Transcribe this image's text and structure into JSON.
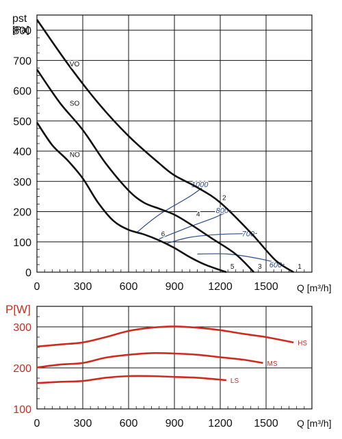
{
  "colors": {
    "black": "#111111",
    "blue": "#2a4a8c",
    "red": "#d02a1e"
  },
  "chart_data": [
    {
      "type": "line",
      "ylabel": "pst",
      "ylabel_unit": "[Pa]",
      "xlabel": "Q [m³/h]",
      "xlim": [
        0,
        1800
      ],
      "ylim": [
        0,
        850
      ],
      "x_ticks": [
        "0",
        "300",
        "600",
        "900",
        "1200",
        "1500"
      ],
      "y_ticks": [
        "0",
        "100",
        "200",
        "300",
        "400",
        "500",
        "600",
        "700",
        "800"
      ],
      "grid": true,
      "series": [
        {
          "name": "VO",
          "end_label": "1",
          "points": [
            [
              0,
              835
            ],
            [
              200,
              690
            ],
            [
              400,
              560
            ],
            [
              600,
              450
            ],
            [
              800,
              360
            ],
            [
              900,
              320
            ],
            [
              1050,
              280
            ],
            [
              1200,
              230
            ],
            [
              1400,
              130
            ],
            [
              1560,
              40
            ],
            [
              1680,
              0
            ]
          ]
        },
        {
          "name": "SO",
          "end_label": "3",
          "points": [
            [
              0,
              670
            ],
            [
              150,
              560
            ],
            [
              300,
              470
            ],
            [
              450,
              360
            ],
            [
              600,
              270
            ],
            [
              700,
              230
            ],
            [
              800,
              210
            ],
            [
              900,
              190
            ],
            [
              1000,
              160
            ],
            [
              1150,
              110
            ],
            [
              1300,
              60
            ],
            [
              1420,
              0
            ]
          ]
        },
        {
          "name": "NO",
          "end_label": "5",
          "points": [
            [
              0,
              495
            ],
            [
              100,
              420
            ],
            [
              200,
              370
            ],
            [
              300,
              310
            ],
            [
              400,
              230
            ],
            [
              500,
              170
            ],
            [
              600,
              140
            ],
            [
              700,
              125
            ],
            [
              800,
              105
            ],
            [
              900,
              80
            ],
            [
              1000,
              50
            ],
            [
              1100,
              25
            ],
            [
              1240,
              0
            ]
          ]
        }
      ],
      "iso_lines": [
        {
          "label": "1000",
          "points": [
            [
              650,
              130
            ],
            [
              800,
              190
            ],
            [
              1000,
              250
            ],
            [
              1110,
              290
            ]
          ]
        },
        {
          "label": "800",
          "points": [
            [
              800,
              110
            ],
            [
              1000,
              150
            ],
            [
              1160,
              180
            ],
            [
              1270,
              205
            ]
          ]
        },
        {
          "label": "700",
          "points": [
            [
              850,
              95
            ],
            [
              1000,
              115
            ],
            [
              1200,
              125
            ],
            [
              1440,
              128
            ]
          ]
        },
        {
          "label": "600",
          "points": [
            [
              1050,
              60
            ],
            [
              1250,
              60
            ],
            [
              1450,
              45
            ],
            [
              1620,
              25
            ]
          ]
        }
      ],
      "point_labels": [
        {
          "label": "2",
          "x": 1200,
          "y": 230
        },
        {
          "label": "4",
          "x": 1030,
          "y": 175
        },
        {
          "label": "6",
          "x": 800,
          "y": 110
        }
      ]
    },
    {
      "type": "line",
      "ylabel": "P[W]",
      "xlabel": "Q [m³/h]",
      "xlim": [
        0,
        1800
      ],
      "ylim": [
        100,
        350
      ],
      "x_ticks": [
        "0",
        "300",
        "600",
        "900",
        "1200",
        "1500"
      ],
      "y_ticks": [
        "100",
        "200",
        "300"
      ],
      "grid": true,
      "series": [
        {
          "name": "HS",
          "points": [
            [
              0,
              252
            ],
            [
              150,
              257
            ],
            [
              300,
              262
            ],
            [
              450,
              275
            ],
            [
              600,
              290
            ],
            [
              750,
              298
            ],
            [
              900,
              301
            ],
            [
              1050,
              298
            ],
            [
              1200,
              292
            ],
            [
              1350,
              283
            ],
            [
              1500,
              275
            ],
            [
              1680,
              262
            ]
          ]
        },
        {
          "name": "MS",
          "points": [
            [
              0,
              201
            ],
            [
              150,
              208
            ],
            [
              300,
              212
            ],
            [
              450,
              225
            ],
            [
              600,
              232
            ],
            [
              750,
              236
            ],
            [
              900,
              235
            ],
            [
              1050,
              232
            ],
            [
              1200,
              226
            ],
            [
              1350,
              220
            ],
            [
              1480,
              212
            ]
          ]
        },
        {
          "name": "LS",
          "points": [
            [
              0,
              163
            ],
            [
              150,
              166
            ],
            [
              300,
              168
            ],
            [
              450,
              176
            ],
            [
              600,
              180
            ],
            [
              750,
              180
            ],
            [
              900,
              178
            ],
            [
              1050,
              176
            ],
            [
              1180,
              172
            ],
            [
              1240,
              170
            ]
          ]
        }
      ]
    }
  ]
}
